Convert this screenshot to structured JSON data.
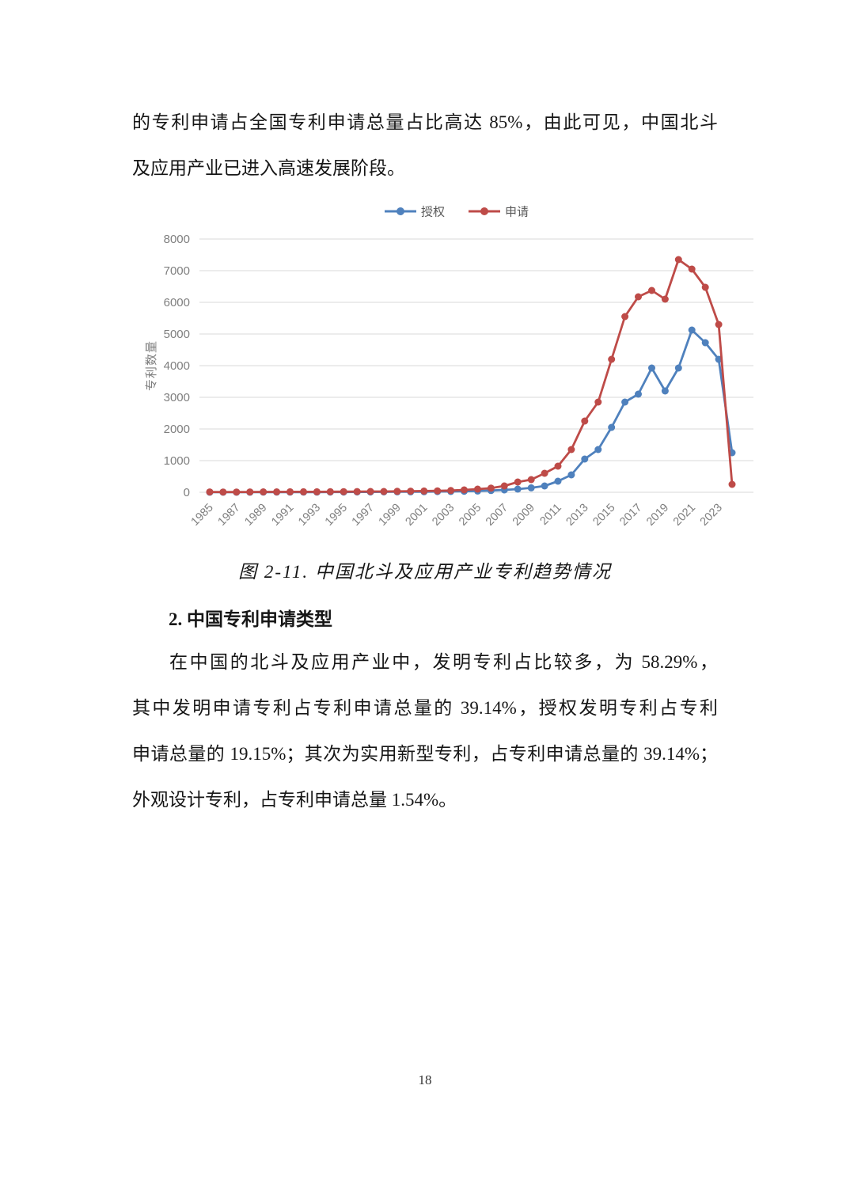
{
  "page": {
    "intro_lines": [
      "的专利申请占全国专利申请总量占比高达 85%，由此可见，中国北斗",
      "及应用产业已进入高速发展阶段。"
    ],
    "figure_caption": "图 2-11. 中国北斗及应用产业专利趋势情况",
    "section_heading": "2. 中国专利申请类型",
    "body_lines": [
      "在中国的北斗及应用产业中，发明专利占比较多，为 58.29%，",
      "其中发明申请专利占专利申请总量的 39.14%，授权发明专利占专利",
      "申请总量的 19.15%；其次为实用新型专利，占专利申请总量的 39.14%；",
      "外观设计专利，占专利申请总量 1.54%。"
    ],
    "page_number": "18"
  },
  "chart_data": {
    "type": "line",
    "title": "",
    "xlabel": "",
    "ylabel": "专利数量",
    "ylim": [
      0,
      8000
    ],
    "y_ticks": [
      0,
      1000,
      2000,
      3000,
      4000,
      5000,
      6000,
      7000,
      8000
    ],
    "grid": "horizontal-only",
    "gridline_color": "#D9D9D9",
    "tick_text_color": "#7F7F7F",
    "legend_text_color": "#595959",
    "legend_position": "top-center",
    "x": [
      1985,
      1986,
      1987,
      1988,
      1989,
      1990,
      1991,
      1992,
      1993,
      1994,
      1995,
      1996,
      1997,
      1998,
      1999,
      2000,
      2001,
      2002,
      2003,
      2004,
      2005,
      2006,
      2007,
      2008,
      2009,
      2010,
      2011,
      2012,
      2013,
      2014,
      2015,
      2016,
      2017,
      2018,
      2019,
      2020,
      2021,
      2022,
      2023,
      2024
    ],
    "x_tick_labels": [
      "1985",
      "1987",
      "1989",
      "1991",
      "1993",
      "1995",
      "1997",
      "1999",
      "2001",
      "2003",
      "2005",
      "2007",
      "2009",
      "2011",
      "2013",
      "2015",
      "2017",
      "2019",
      "2021",
      "2023"
    ],
    "series": [
      {
        "name": "授权",
        "color": "#4F81BD",
        "values": [
          3,
          2,
          3,
          3,
          4,
          4,
          5,
          5,
          6,
          7,
          8,
          9,
          10,
          12,
          14,
          16,
          18,
          22,
          26,
          32,
          40,
          55,
          75,
          100,
          140,
          200,
          350,
          550,
          1050,
          1350,
          2050,
          2850,
          3100,
          3925,
          3200,
          3925,
          5125,
          4725,
          4200,
          1250
        ]
      },
      {
        "name": "申请",
        "color": "#BE4B48",
        "values": [
          10,
          8,
          8,
          10,
          12,
          12,
          14,
          15,
          16,
          18,
          20,
          22,
          24,
          26,
          30,
          35,
          40,
          45,
          55,
          75,
          100,
          130,
          200,
          325,
          400,
          600,
          825,
          1350,
          2250,
          2850,
          4200,
          5550,
          6175,
          6375,
          6100,
          7350,
          7050,
          6475,
          5300,
          250
        ]
      }
    ]
  }
}
